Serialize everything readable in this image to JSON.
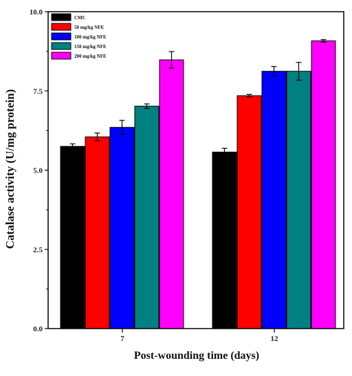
{
  "chart_data": {
    "type": "bar",
    "title": "",
    "xlabel": "Post-wounding time (days)",
    "ylabel": "Catalase activity (U/mg protein)",
    "ylim": [
      0,
      10
    ],
    "yticks": [
      "0.0",
      "2.5",
      "5.0",
      "7.5",
      "10.0"
    ],
    "categories": [
      "7",
      "12"
    ],
    "legend_position": "top-left",
    "grid": false,
    "error_bars": true,
    "series": [
      {
        "name": "CMC",
        "color": "#000000",
        "values": [
          5.75,
          5.57
        ],
        "errors": [
          0.08,
          0.12
        ]
      },
      {
        "name": "50 mg/kg NFE",
        "color": "#ff0000",
        "values": [
          6.05,
          7.35
        ],
        "errors": [
          0.12,
          0.04
        ]
      },
      {
        "name": "100 mg/kg NFE",
        "color": "#0000ff",
        "values": [
          6.35,
          8.12
        ],
        "errors": [
          0.22,
          0.15
        ]
      },
      {
        "name": "150 mg/kg NFE",
        "color": "#008080",
        "values": [
          7.02,
          8.12
        ],
        "errors": [
          0.07,
          0.28
        ]
      },
      {
        "name": "200 mg/kg NFE",
        "color": "#ff00ff",
        "values": [
          8.48,
          9.08
        ],
        "errors": [
          0.26,
          0.04
        ]
      }
    ]
  }
}
